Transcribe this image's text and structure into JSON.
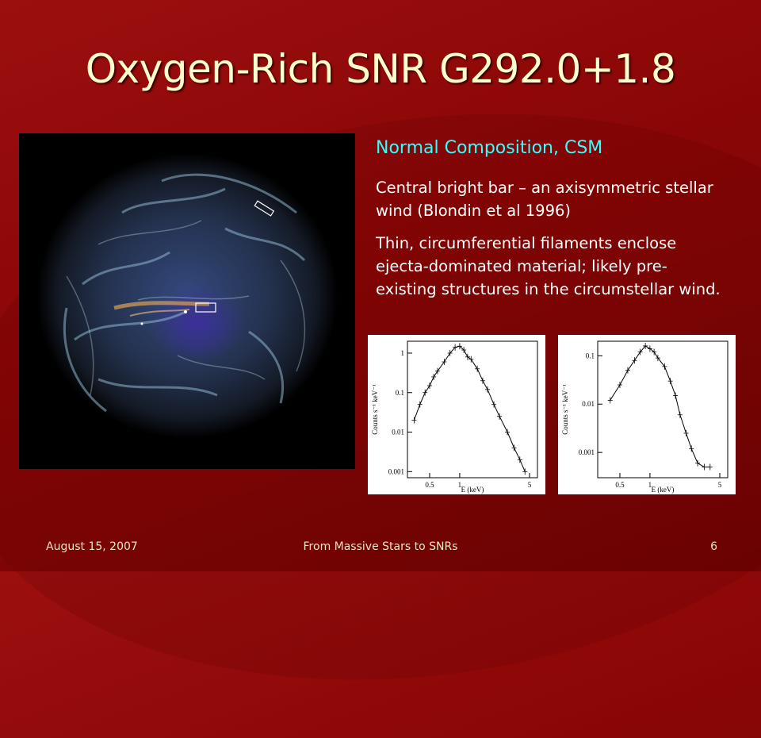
{
  "slide": {
    "title": "Oxygen-Rich SNR G292.0+1.8",
    "subheading": "Normal Composition, CSM",
    "paragraphs": [
      "Central bright bar – an axisymmetric stellar wind (Blondin et al 1996)",
      "Thin, circumferential filaments enclose ejecta-dominated material; likely pre-existing structures in the circumstellar wind."
    ],
    "footer": {
      "date": "August 15, 2007",
      "center": "From Massive Stars to SNRs",
      "page": "6"
    }
  },
  "colors": {
    "background": "#8a0606",
    "title": "#ffffcc",
    "subheading": "#33ffff",
    "footer": "#e8e8c8"
  },
  "chart_data": [
    {
      "type": "line",
      "xlabel": "E (keV)",
      "ylabel": "Counts s⁻¹ keV⁻¹",
      "xscale": "log",
      "yscale": "log",
      "xticks": [
        "0.5",
        "1",
        "5"
      ],
      "yticks": [
        "1",
        "0.1",
        "0.01",
        "0.001"
      ],
      "xlim": [
        0.3,
        6
      ],
      "ylim": [
        0.0007,
        2
      ],
      "x": [
        0.35,
        0.4,
        0.45,
        0.5,
        0.55,
        0.6,
        0.7,
        0.8,
        0.9,
        1.0,
        1.1,
        1.2,
        1.3,
        1.5,
        1.7,
        1.9,
        2.2,
        2.5,
        3.0,
        3.5,
        4.0,
        4.5
      ],
      "y": [
        0.02,
        0.05,
        0.1,
        0.15,
        0.25,
        0.35,
        0.6,
        1.0,
        1.4,
        1.5,
        1.2,
        0.8,
        0.7,
        0.4,
        0.2,
        0.12,
        0.05,
        0.025,
        0.01,
        0.004,
        0.002,
        0.001
      ]
    },
    {
      "type": "line",
      "xlabel": "E (keV)",
      "ylabel": "Counts s⁻¹ keV⁻¹",
      "xscale": "log",
      "yscale": "log",
      "xticks": [
        "0.5",
        "1",
        "5"
      ],
      "yticks": [
        "0.1",
        "0.01",
        "0.001"
      ],
      "xlim": [
        0.3,
        6
      ],
      "ylim": [
        0.0003,
        0.2
      ],
      "x": [
        0.4,
        0.5,
        0.6,
        0.7,
        0.8,
        0.9,
        1.0,
        1.1,
        1.2,
        1.4,
        1.6,
        1.8,
        2.0,
        2.3,
        2.6,
        3.0,
        3.5,
        4.0
      ],
      "y": [
        0.012,
        0.025,
        0.05,
        0.08,
        0.12,
        0.16,
        0.14,
        0.12,
        0.09,
        0.06,
        0.03,
        0.015,
        0.006,
        0.0025,
        0.0012,
        0.0006,
        0.0005,
        0.0005
      ]
    }
  ]
}
